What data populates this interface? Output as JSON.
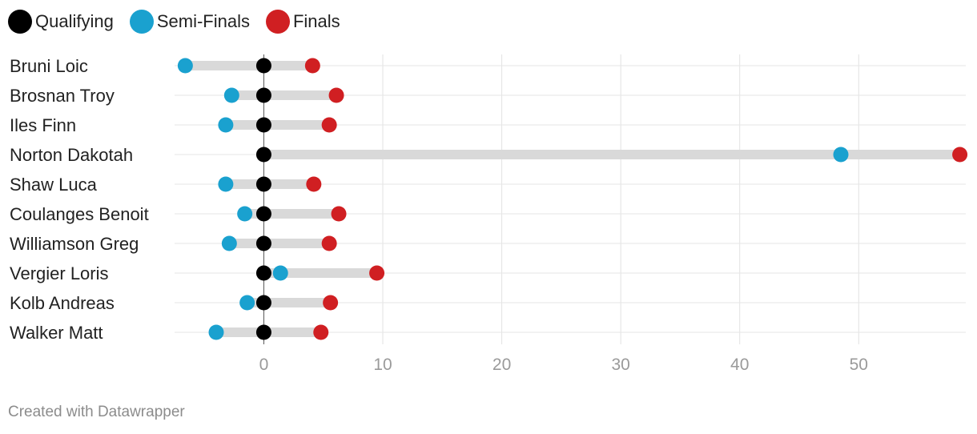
{
  "chart_data": {
    "type": "dot-range",
    "series": [
      {
        "name": "Qualifying",
        "color": "#000000"
      },
      {
        "name": "Semi-Finals",
        "color": "#1aa1cf"
      },
      {
        "name": "Finals",
        "color": "#d01f22"
      }
    ],
    "categories": [
      "Bruni Loic",
      "Brosnan Troy",
      "Iles Finn",
      "Norton Dakotah",
      "Shaw Luca",
      "Coulanges Benoit",
      "Williamson Greg",
      "Vergier Loris",
      "Kolb Andreas",
      "Walker Matt"
    ],
    "values": {
      "Qualifying": [
        0,
        0,
        0,
        0,
        0,
        0,
        0,
        0,
        0,
        0
      ],
      "Semi-Finals": [
        -6.6,
        -2.7,
        -3.2,
        48.5,
        -3.2,
        -1.6,
        -2.9,
        1.4,
        -1.4,
        -4.0
      ],
      "Finals": [
        4.1,
        6.1,
        5.5,
        58.5,
        4.2,
        6.3,
        5.5,
        9.5,
        5.6,
        4.8
      ]
    },
    "xlim": [
      -7.5,
      59
    ],
    "xticks": [
      0,
      10,
      20,
      30,
      40,
      50
    ],
    "xtick_labels": [
      "0",
      "10",
      "20",
      "30",
      "40",
      "50"
    ],
    "grid": true,
    "legend_position": "top-left"
  },
  "footer": {
    "credit": "Created with Datawrapper"
  }
}
